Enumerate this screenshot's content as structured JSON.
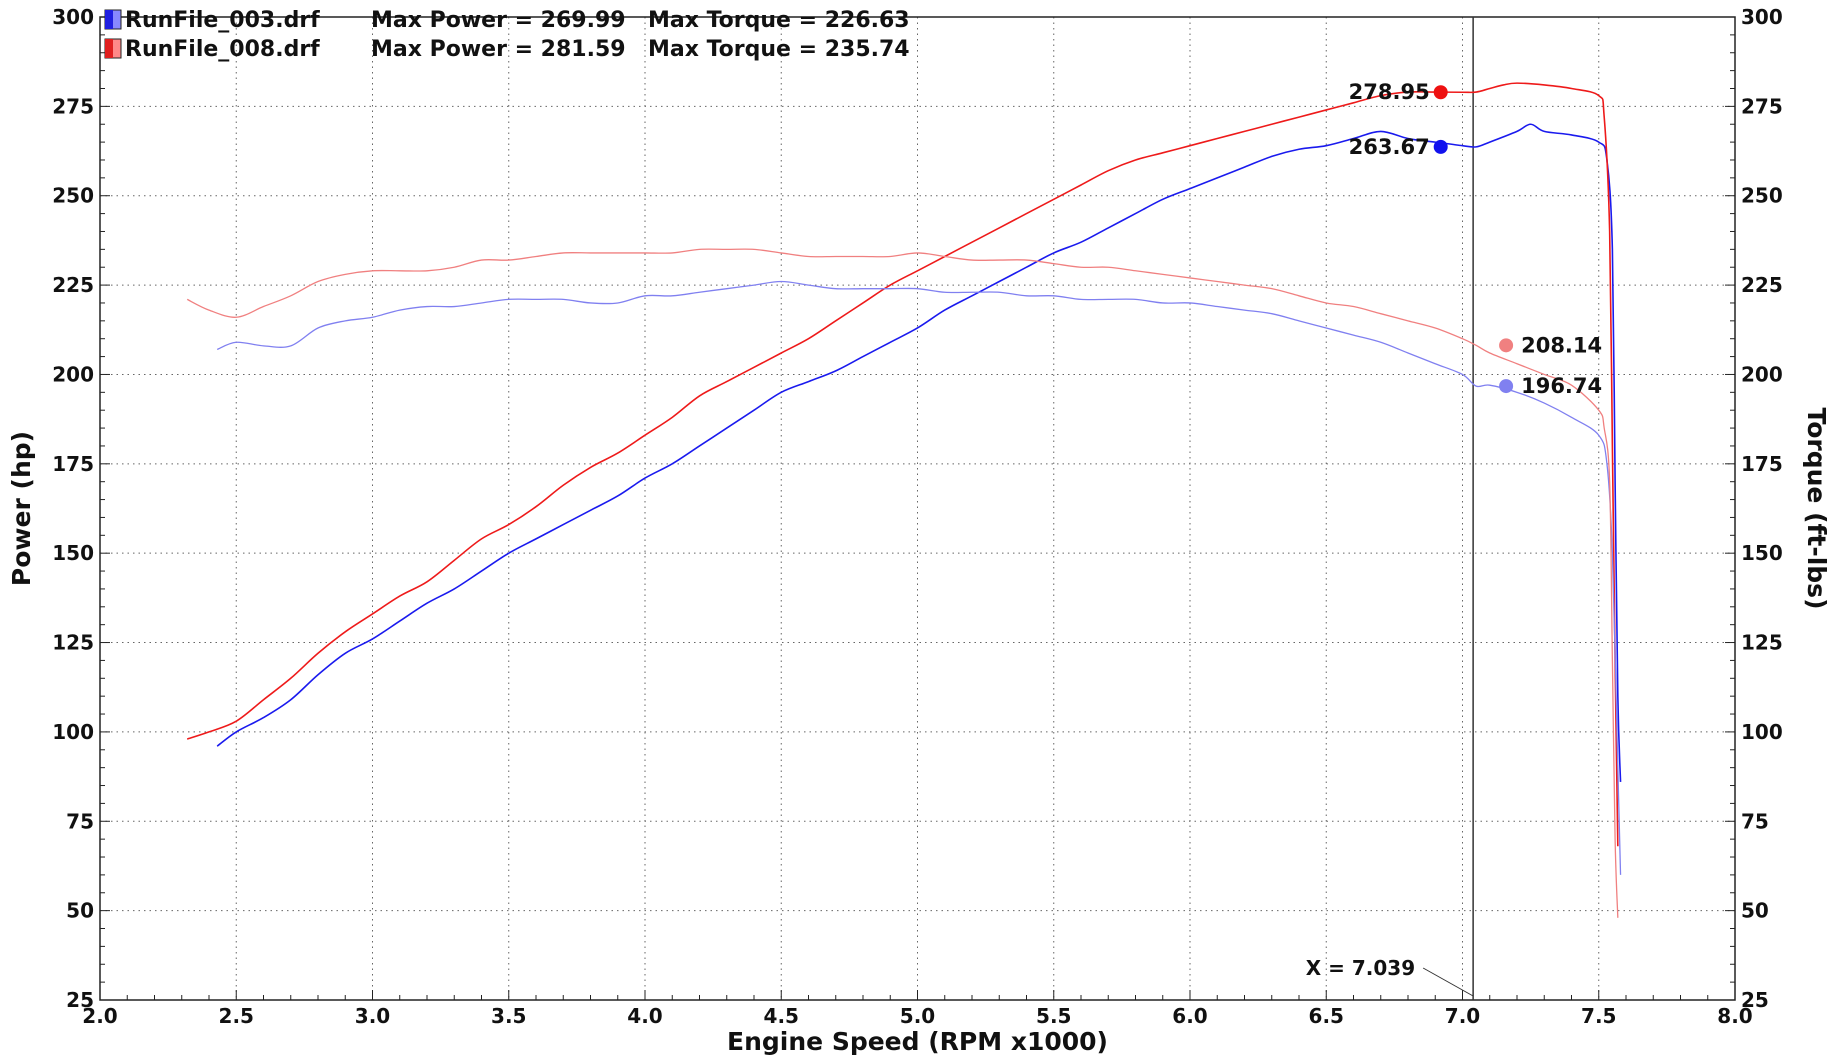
{
  "chart_data": {
    "type": "line",
    "xlabel": "Engine Speed (RPM x1000)",
    "ylabel_left": "Power (hp)",
    "ylabel_right": "Torque (ft-lbs)",
    "xlim": [
      2.0,
      8.0
    ],
    "ylim": [
      25,
      300
    ],
    "x_ticks": [
      2.0,
      2.5,
      3.0,
      3.5,
      4.0,
      4.5,
      5.0,
      5.5,
      6.0,
      6.5,
      7.0,
      7.5,
      8.0
    ],
    "x_tick_labels": [
      "2.0",
      "2.5",
      "3.0",
      "3.5",
      "4.0",
      "4.5",
      "5.0",
      "5.5",
      "6.0",
      "6.5",
      "7.0",
      "7.5",
      "8.0"
    ],
    "y_ticks": [
      25,
      50,
      75,
      100,
      125,
      150,
      175,
      200,
      225,
      250,
      275,
      300
    ],
    "y_tick_labels": [
      "25",
      "50",
      "75",
      "100",
      "125",
      "150",
      "175",
      "200",
      "225",
      "250",
      "275",
      "300"
    ],
    "grid": true,
    "legend_position": "top-left",
    "legend": [
      {
        "file": "RunFile_003.drf",
        "power_text": "Max Power = 269.99",
        "torque_text": "Max Torque = 226.63",
        "color": "#2020e0",
        "light_color": "#8888ff"
      },
      {
        "file": "RunFile_008.drf",
        "power_text": "Max Power = 281.59",
        "torque_text": "Max Torque = 235.74",
        "color": "#e02020",
        "light_color": "#ff8888"
      }
    ],
    "cursor": {
      "x": 7.039,
      "label": "X = 7.039"
    },
    "markers": [
      {
        "x": 6.92,
        "y": 278.95,
        "label": "278.95",
        "color": "#ee1111",
        "side": "left"
      },
      {
        "x": 6.92,
        "y": 263.67,
        "label": "263.67",
        "color": "#1111ee",
        "side": "left"
      },
      {
        "x": 7.16,
        "y": 208.14,
        "label": "208.14",
        "color": "#f08080",
        "side": "right"
      },
      {
        "x": 7.16,
        "y": 196.74,
        "label": "196.74",
        "color": "#8080f0",
        "side": "right"
      }
    ],
    "series": [
      {
        "name": "RunFile_003.drf Power",
        "color": "#1a1aee",
        "width": 1.6,
        "x": [
          2.43,
          2.5,
          2.6,
          2.7,
          2.8,
          2.9,
          3.0,
          3.1,
          3.2,
          3.3,
          3.4,
          3.5,
          3.6,
          3.7,
          3.8,
          3.9,
          4.0,
          4.1,
          4.2,
          4.3,
          4.4,
          4.5,
          4.6,
          4.7,
          4.8,
          4.9,
          5.0,
          5.1,
          5.2,
          5.3,
          5.4,
          5.5,
          5.6,
          5.7,
          5.8,
          5.9,
          6.0,
          6.1,
          6.2,
          6.3,
          6.4,
          6.5,
          6.6,
          6.7,
          6.8,
          6.9,
          7.0,
          7.05,
          7.1,
          7.2,
          7.25,
          7.3,
          7.4,
          7.5,
          7.53,
          7.55,
          7.56,
          7.57,
          7.58
        ],
        "y": [
          96,
          100,
          104,
          109,
          116,
          122,
          126,
          131,
          136,
          140,
          145,
          150,
          154,
          158,
          162,
          166,
          171,
          175,
          180,
          185,
          190,
          195,
          198,
          201,
          205,
          209,
          213,
          218,
          222,
          226,
          230,
          234,
          237,
          241,
          245,
          249,
          252,
          255,
          258,
          261,
          263,
          264,
          266,
          268,
          266,
          265,
          264,
          263.67,
          265,
          268,
          270,
          268,
          267,
          265,
          260,
          235,
          170,
          110,
          86
        ]
      },
      {
        "name": "RunFile_008.drf Power",
        "color": "#ee1a1a",
        "width": 1.6,
        "x": [
          2.32,
          2.4,
          2.5,
          2.6,
          2.7,
          2.8,
          2.9,
          3.0,
          3.1,
          3.2,
          3.3,
          3.4,
          3.5,
          3.6,
          3.7,
          3.8,
          3.9,
          4.0,
          4.1,
          4.2,
          4.3,
          4.4,
          4.5,
          4.6,
          4.7,
          4.8,
          4.9,
          5.0,
          5.1,
          5.2,
          5.3,
          5.4,
          5.5,
          5.6,
          5.7,
          5.8,
          5.9,
          6.0,
          6.1,
          6.2,
          6.3,
          6.4,
          6.5,
          6.6,
          6.7,
          6.8,
          6.9,
          7.0,
          7.05,
          7.1,
          7.15,
          7.2,
          7.3,
          7.4,
          7.5,
          7.52,
          7.54,
          7.55,
          7.56,
          7.57
        ],
        "y": [
          98,
          100,
          103,
          109,
          115,
          122,
          128,
          133,
          138,
          142,
          148,
          154,
          158,
          163,
          169,
          174,
          178,
          183,
          188,
          194,
          198,
          202,
          206,
          210,
          215,
          220,
          225,
          229,
          233,
          237,
          241,
          245,
          249,
          253,
          257,
          260,
          262,
          264,
          266,
          268,
          270,
          272,
          274,
          276,
          278,
          279,
          279,
          278.95,
          279,
          280,
          281,
          281.5,
          281,
          280,
          278,
          272,
          240,
          180,
          120,
          68
        ]
      },
      {
        "name": "RunFile_003.drf Torque",
        "color": "#8080f0",
        "width": 1.3,
        "x": [
          2.43,
          2.5,
          2.6,
          2.7,
          2.8,
          2.9,
          3.0,
          3.1,
          3.2,
          3.3,
          3.4,
          3.5,
          3.6,
          3.7,
          3.8,
          3.9,
          4.0,
          4.1,
          4.2,
          4.3,
          4.4,
          4.5,
          4.6,
          4.7,
          4.8,
          4.9,
          5.0,
          5.1,
          5.2,
          5.3,
          5.4,
          5.5,
          5.6,
          5.7,
          5.8,
          5.9,
          6.0,
          6.1,
          6.2,
          6.3,
          6.4,
          6.5,
          6.6,
          6.7,
          6.8,
          6.9,
          7.0,
          7.05,
          7.1,
          7.2,
          7.3,
          7.4,
          7.5,
          7.53,
          7.55,
          7.57,
          7.58
        ],
        "y": [
          207,
          209,
          208,
          208,
          213,
          215,
          216,
          218,
          219,
          219,
          220,
          221,
          221,
          221,
          220,
          220,
          222,
          222,
          223,
          224,
          225,
          226,
          225,
          224,
          224,
          224,
          224,
          223,
          223,
          223,
          222,
          222,
          221,
          221,
          221,
          220,
          220,
          219,
          218,
          217,
          215,
          213,
          211,
          209,
          206,
          203,
          200,
          196.74,
          197,
          195,
          192,
          188,
          183,
          175,
          150,
          90,
          60
        ]
      },
      {
        "name": "RunFile_008.drf Torque",
        "color": "#f08080",
        "width": 1.3,
        "x": [
          2.32,
          2.4,
          2.5,
          2.6,
          2.7,
          2.8,
          2.9,
          3.0,
          3.1,
          3.2,
          3.3,
          3.4,
          3.5,
          3.6,
          3.7,
          3.8,
          3.9,
          4.0,
          4.1,
          4.2,
          4.3,
          4.4,
          4.5,
          4.6,
          4.7,
          4.8,
          4.9,
          5.0,
          5.1,
          5.2,
          5.3,
          5.4,
          5.5,
          5.6,
          5.7,
          5.8,
          5.9,
          6.0,
          6.1,
          6.2,
          6.3,
          6.4,
          6.5,
          6.6,
          6.7,
          6.8,
          6.9,
          7.0,
          7.05,
          7.1,
          7.2,
          7.3,
          7.4,
          7.5,
          7.52,
          7.54,
          7.55,
          7.56,
          7.57
        ],
        "y": [
          221,
          218,
          216,
          219,
          222,
          226,
          228,
          229,
          229,
          229,
          230,
          232,
          232,
          233,
          234,
          234,
          234,
          234,
          234,
          235,
          235,
          235,
          234,
          233,
          233,
          233,
          233,
          234,
          233,
          232,
          232,
          232,
          231,
          230,
          230,
          229,
          228,
          227,
          226,
          225,
          224,
          222,
          220,
          219,
          217,
          215,
          213,
          210,
          208.14,
          206,
          203,
          200,
          197,
          190,
          185,
          170,
          120,
          70,
          48
        ]
      }
    ]
  }
}
